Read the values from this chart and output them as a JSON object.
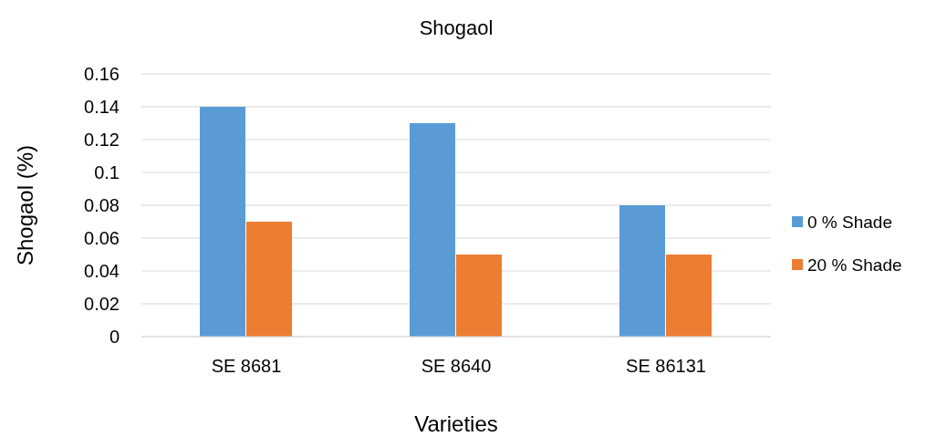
{
  "chart_data": {
    "type": "bar",
    "title": "Shogaol",
    "xlabel": "Varieties",
    "ylabel": "Shogaol (%)",
    "categories": [
      "SE 8681",
      "SE 8640",
      "SE 86131"
    ],
    "series": [
      {
        "name": "0 % Shade",
        "color": "#5b9bd5",
        "values": [
          0.14,
          0.13,
          0.08
        ]
      },
      {
        "name": "20 % Shade",
        "color": "#ed7d31",
        "values": [
          0.07,
          0.05,
          0.05
        ]
      }
    ],
    "ylim": [
      0,
      0.16
    ],
    "yticks": [
      0,
      {
        "value": 0.02,
        "label": "0.02"
      },
      {
        "value": 0.04,
        "label": "0.04"
      },
      {
        "value": 0.06,
        "label": "0.06"
      },
      {
        "value": 0.08,
        "label": "0.08"
      },
      {
        "value": 0.1,
        "label": "0.1"
      },
      {
        "value": 0.12,
        "label": "0.12"
      },
      {
        "value": 0.14,
        "label": "0.14"
      },
      {
        "value": 0.16,
        "label": "0.16"
      }
    ],
    "grid": "y",
    "legend": "right"
  }
}
